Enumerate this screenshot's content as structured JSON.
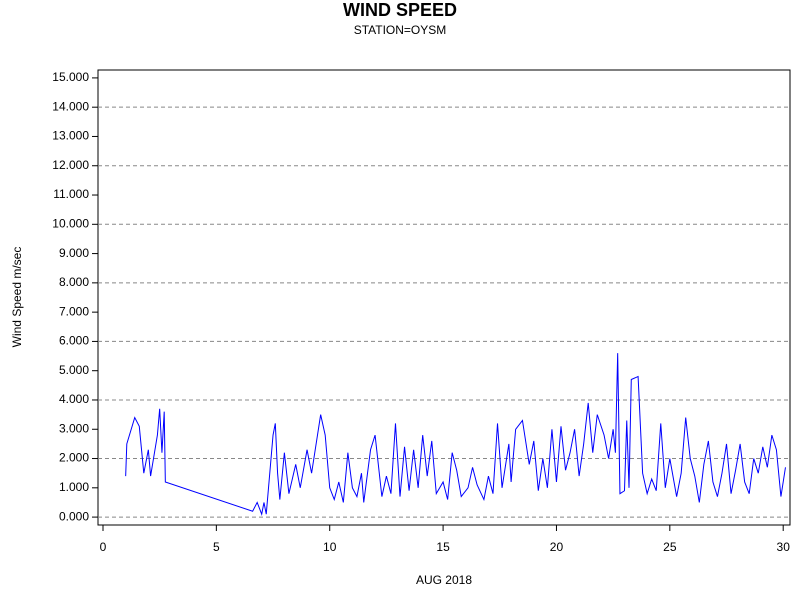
{
  "chart_data": {
    "type": "line",
    "title": "WIND SPEED",
    "subtitle": "STATION=OYSM",
    "xlabel": "AUG 2018",
    "ylabel": "Wind Speed m/sec",
    "xlim": [
      -0.22,
      30.3
    ],
    "xticks": [
      0,
      5,
      10,
      15,
      20,
      25,
      30
    ],
    "ylim": [
      -0.27,
      15.27
    ],
    "yticks": [
      {
        "value": 0,
        "label": "0.000"
      },
      {
        "value": 1,
        "label": "1.000"
      },
      {
        "value": 2,
        "label": "2.000"
      },
      {
        "value": 3,
        "label": "3.000"
      },
      {
        "value": 4,
        "label": "4.000"
      },
      {
        "value": 5,
        "label": "5.000"
      },
      {
        "value": 6,
        "label": "6.000"
      },
      {
        "value": 7,
        "label": "7.000"
      },
      {
        "value": 8,
        "label": "8.000"
      },
      {
        "value": 9,
        "label": "9.000"
      },
      {
        "value": 10,
        "label": "10.000"
      },
      {
        "value": 11,
        "label": "11.000"
      },
      {
        "value": 12,
        "label": "12.000"
      },
      {
        "value": 13,
        "label": "13.000"
      },
      {
        "value": 14,
        "label": "14.000"
      },
      {
        "value": 15,
        "label": "15.000"
      }
    ],
    "ygrid": [
      0,
      2,
      4,
      6,
      8,
      10,
      12,
      14
    ],
    "x": [
      1.0,
      1.05,
      1.4,
      1.6,
      1.8,
      2.0,
      2.1,
      2.4,
      2.5,
      2.6,
      2.7,
      2.75,
      6.6,
      6.8,
      7.0,
      7.1,
      7.2,
      7.3,
      7.5,
      7.6,
      7.7,
      7.8,
      8.0,
      8.2,
      8.5,
      8.7,
      9.0,
      9.2,
      9.4,
      9.6,
      9.8,
      10.0,
      10.2,
      10.4,
      10.6,
      10.8,
      11.0,
      11.2,
      11.4,
      11.5,
      11.8,
      12.0,
      12.3,
      12.5,
      12.7,
      12.9,
      13.1,
      13.3,
      13.5,
      13.7,
      13.9,
      14.1,
      14.3,
      14.5,
      14.7,
      15.0,
      15.2,
      15.4,
      15.6,
      15.8,
      16.1,
      16.3,
      16.5,
      16.8,
      17.0,
      17.2,
      17.4,
      17.6,
      17.9,
      18.0,
      18.2,
      18.5,
      18.8,
      19.0,
      19.2,
      19.4,
      19.6,
      19.8,
      20.0,
      20.2,
      20.4,
      20.6,
      20.8,
      21.0,
      21.2,
      21.4,
      21.6,
      21.8,
      22.1,
      22.3,
      22.5,
      22.6,
      22.7,
      22.8,
      23.0,
      23.1,
      23.2,
      23.3,
      23.6,
      23.8,
      24.0,
      24.2,
      24.4,
      24.6,
      24.8,
      25.0,
      25.3,
      25.5,
      25.7,
      25.9,
      26.1,
      26.3,
      26.5,
      26.7,
      26.9,
      27.1,
      27.3,
      27.5,
      27.7,
      27.9,
      28.1,
      28.3,
      28.5,
      28.7,
      28.9,
      29.1,
      29.3,
      29.5,
      29.7,
      29.9,
      30.1
    ],
    "series": [
      {
        "color": "#0000ff",
        "values": [
          1.4,
          2.5,
          3.4,
          3.1,
          1.5,
          2.3,
          1.4,
          2.8,
          3.7,
          2.2,
          3.6,
          1.2,
          0.2,
          0.5,
          0.1,
          0.5,
          0.1,
          1.0,
          2.8,
          3.2,
          1.5,
          0.6,
          2.2,
          0.8,
          1.8,
          1.0,
          2.3,
          1.5,
          2.5,
          3.5,
          2.8,
          1.0,
          0.6,
          1.2,
          0.5,
          2.2,
          1.0,
          0.7,
          1.5,
          0.5,
          2.3,
          2.8,
          0.7,
          1.4,
          0.8,
          3.2,
          0.7,
          2.4,
          0.9,
          2.3,
          1.0,
          2.8,
          1.4,
          2.6,
          0.8,
          1.2,
          0.6,
          2.2,
          1.6,
          0.7,
          1.0,
          1.7,
          1.1,
          0.6,
          1.4,
          0.8,
          3.2,
          1.0,
          2.5,
          1.2,
          3.0,
          3.3,
          1.8,
          2.6,
          0.9,
          2.0,
          1.0,
          3.0,
          1.2,
          3.1,
          1.6,
          2.2,
          3.0,
          1.4,
          2.5,
          3.9,
          2.2,
          3.5,
          2.8,
          2.0,
          3.0,
          2.2,
          5.6,
          0.8,
          0.9,
          3.3,
          1.0,
          4.7,
          4.8,
          1.5,
          0.8,
          1.3,
          0.9,
          3.2,
          1.0,
          2.0,
          0.7,
          1.5,
          3.4,
          2.0,
          1.4,
          0.5,
          1.8,
          2.6,
          1.2,
          0.7,
          1.5,
          2.5,
          0.8,
          1.6,
          2.5,
          1.2,
          0.8,
          2.0,
          1.5,
          2.4,
          1.7,
          2.8,
          2.3,
          0.7,
          1.7
        ]
      }
    ]
  }
}
